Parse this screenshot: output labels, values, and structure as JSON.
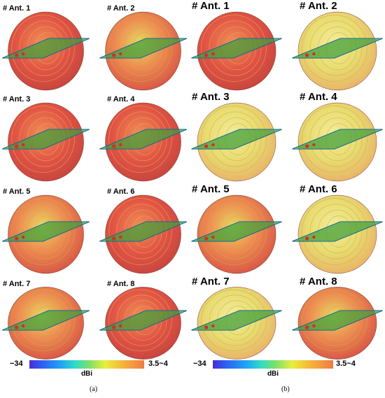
{
  "panels": [
    {
      "id": "a",
      "caption": "(a)",
      "antennas": [
        "# Ant. 1",
        "# Ant. 2",
        "# Ant. 3",
        "# Ant. 4",
        "# Ant. 5",
        "# Ant. 6",
        "# Ant. 7",
        "# Ant. 8"
      ],
      "colorbar": {
        "min": "−34",
        "max": "3.5~4",
        "unit": "dBi"
      }
    },
    {
      "id": "b",
      "caption": "(b)",
      "antennas": [
        "# Ant. 1",
        "# Ant. 2",
        "# Ant. 3",
        "# Ant. 4",
        "# Ant. 5",
        "# Ant. 6",
        "# Ant. 7",
        "# Ant. 8"
      ],
      "colorbar": {
        "min": "−34",
        "max": "3.5~4",
        "unit": "dBi"
      }
    }
  ],
  "colors": {
    "pattern_red": "#e04a3c",
    "pattern_orange": "#ef8a4a",
    "pattern_yellow": "#e6d75a",
    "board_green": "#3fa03a",
    "board_edge": "#1fa0b0"
  }
}
